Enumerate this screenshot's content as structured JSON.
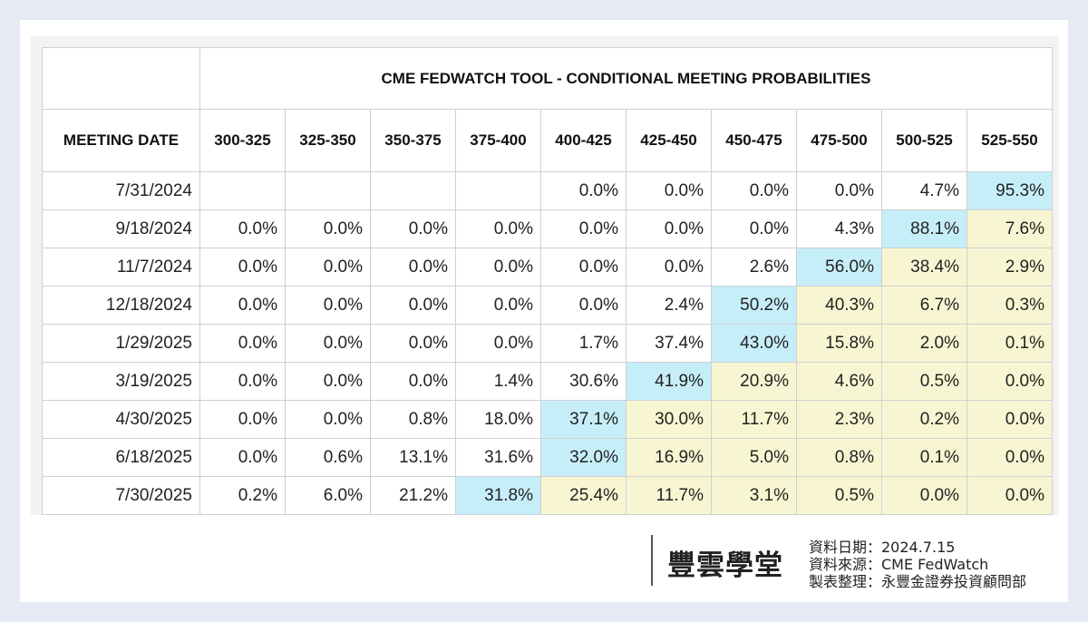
{
  "chart_data": {
    "type": "table",
    "title": "CME FEDWATCH TOOL - CONDITIONAL MEETING PROBABILITIES",
    "row_header": "MEETING DATE",
    "columns": [
      "300-325",
      "325-350",
      "350-375",
      "375-400",
      "400-425",
      "425-450",
      "450-475",
      "475-500",
      "500-525",
      "525-550"
    ],
    "rows": [
      {
        "date": "7/31/2024",
        "values": [
          "",
          "",
          "",
          "",
          "0.0%",
          "0.0%",
          "0.0%",
          "0.0%",
          "4.7%",
          "95.3%"
        ],
        "highlight": 9
      },
      {
        "date": "9/18/2024",
        "values": [
          "0.0%",
          "0.0%",
          "0.0%",
          "0.0%",
          "0.0%",
          "0.0%",
          "0.0%",
          "4.3%",
          "88.1%",
          "7.6%"
        ],
        "highlight": 8
      },
      {
        "date": "11/7/2024",
        "values": [
          "0.0%",
          "0.0%",
          "0.0%",
          "0.0%",
          "0.0%",
          "0.0%",
          "2.6%",
          "56.0%",
          "38.4%",
          "2.9%"
        ],
        "highlight": 7
      },
      {
        "date": "12/18/2024",
        "values": [
          "0.0%",
          "0.0%",
          "0.0%",
          "0.0%",
          "0.0%",
          "2.4%",
          "50.2%",
          "40.3%",
          "6.7%",
          "0.3%"
        ],
        "highlight": 6
      },
      {
        "date": "1/29/2025",
        "values": [
          "0.0%",
          "0.0%",
          "0.0%",
          "0.0%",
          "1.7%",
          "37.4%",
          "43.0%",
          "15.8%",
          "2.0%",
          "0.1%"
        ],
        "highlight": 6
      },
      {
        "date": "3/19/2025",
        "values": [
          "0.0%",
          "0.0%",
          "0.0%",
          "1.4%",
          "30.6%",
          "41.9%",
          "20.9%",
          "4.6%",
          "0.5%",
          "0.0%"
        ],
        "highlight": 5
      },
      {
        "date": "4/30/2025",
        "values": [
          "0.0%",
          "0.0%",
          "0.8%",
          "18.0%",
          "37.1%",
          "30.0%",
          "11.7%",
          "2.3%",
          "0.2%",
          "0.0%"
        ],
        "highlight": 4
      },
      {
        "date": "6/18/2025",
        "values": [
          "0.0%",
          "0.6%",
          "13.1%",
          "31.6%",
          "32.0%",
          "16.9%",
          "5.0%",
          "0.8%",
          "0.1%",
          "0.0%"
        ],
        "highlight": 4
      },
      {
        "date": "7/30/2025",
        "values": [
          "0.2%",
          "6.0%",
          "21.2%",
          "31.8%",
          "25.4%",
          "11.7%",
          "3.1%",
          "0.5%",
          "0.0%",
          "0.0%"
        ],
        "highlight": 3
      }
    ],
    "colors": {
      "highlight": "#c6eef8",
      "after": "#f8f6d2"
    }
  },
  "footer": {
    "logo": "豐雲學堂",
    "date_line": "資料日期：2024.7.15",
    "source_line": "資料來源：CME FedWatch",
    "compiled_line": "製表整理：永豐金證券投資顧問部"
  }
}
